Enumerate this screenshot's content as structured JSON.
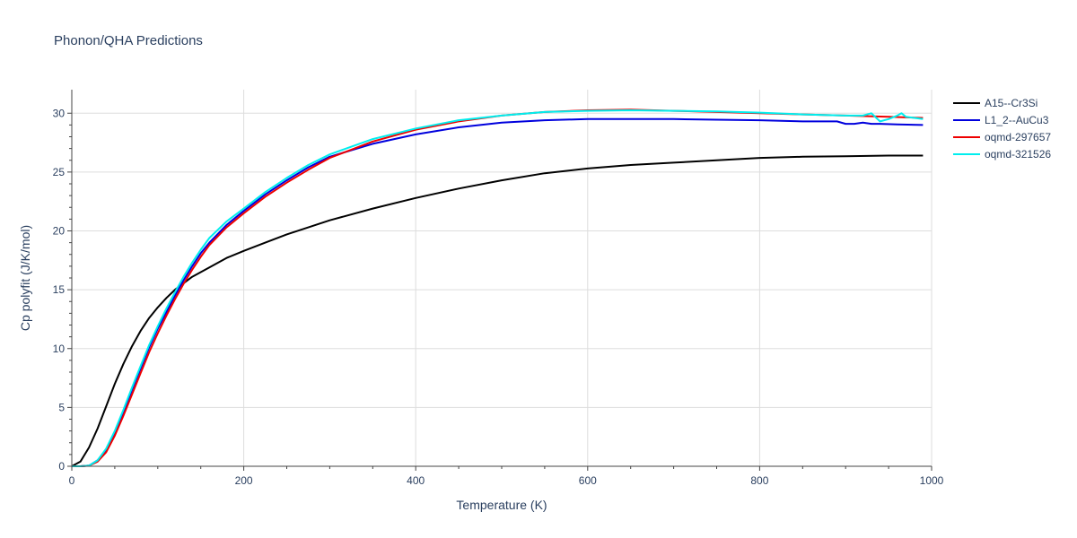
{
  "chart_data": {
    "type": "line",
    "title": "Phonon/QHA Predictions",
    "xlabel": "Temperature (K)",
    "ylabel": "Cp polyfit (J/K/mol)",
    "xlim": [
      0,
      1000
    ],
    "ylim": [
      0,
      32
    ],
    "xticks": [
      0,
      200,
      400,
      600,
      800,
      1000
    ],
    "yticks": [
      0,
      5,
      10,
      15,
      20,
      25,
      30
    ],
    "grid": true,
    "legend_position": "right",
    "series": [
      {
        "name": "A15--Cr3Si",
        "color": "#000000",
        "x": [
          0,
          10,
          20,
          30,
          40,
          50,
          60,
          70,
          80,
          90,
          100,
          110,
          120,
          140,
          160,
          180,
          200,
          225,
          250,
          275,
          300,
          350,
          400,
          450,
          500,
          550,
          600,
          650,
          700,
          750,
          800,
          850,
          900,
          950,
          990
        ],
        "y": [
          0,
          0.4,
          1.6,
          3.2,
          5.1,
          7.0,
          8.7,
          10.2,
          11.5,
          12.6,
          13.5,
          14.3,
          15.0,
          16.1,
          16.9,
          17.7,
          18.3,
          19.0,
          19.7,
          20.3,
          20.9,
          21.9,
          22.8,
          23.6,
          24.3,
          24.9,
          25.3,
          25.6,
          25.8,
          26.0,
          26.2,
          26.3,
          26.35,
          26.4,
          26.4
        ]
      },
      {
        "name": "L1_2--AuCu3",
        "color": "#0000dd",
        "x": [
          0,
          10,
          20,
          30,
          40,
          50,
          60,
          70,
          80,
          90,
          100,
          110,
          120,
          130,
          140,
          150,
          160,
          180,
          200,
          225,
          250,
          275,
          300,
          350,
          400,
          450,
          500,
          550,
          600,
          650,
          700,
          750,
          800,
          850,
          880,
          890,
          900,
          910,
          920,
          930,
          940,
          960,
          990
        ],
        "y": [
          0,
          0,
          0.05,
          0.5,
          1.4,
          2.9,
          4.6,
          6.5,
          8.3,
          10.1,
          11.7,
          13.1,
          14.5,
          15.8,
          17.0,
          18.1,
          19.0,
          20.5,
          21.7,
          23.1,
          24.3,
          25.4,
          26.3,
          27.4,
          28.2,
          28.8,
          29.2,
          29.4,
          29.5,
          29.5,
          29.5,
          29.45,
          29.4,
          29.3,
          29.3,
          29.3,
          29.1,
          29.1,
          29.2,
          29.1,
          29.1,
          29.05,
          29.0
        ]
      },
      {
        "name": "oqmd-297657",
        "color": "#ee0000",
        "x": [
          0,
          10,
          20,
          30,
          40,
          50,
          60,
          70,
          80,
          90,
          100,
          110,
          120,
          130,
          140,
          150,
          160,
          180,
          200,
          225,
          250,
          275,
          300,
          350,
          400,
          450,
          500,
          550,
          600,
          650,
          700,
          750,
          800,
          850,
          900,
          950,
          990
        ],
        "y": [
          0,
          0,
          0.05,
          0.4,
          1.2,
          2.6,
          4.3,
          6.1,
          7.9,
          9.7,
          11.3,
          12.8,
          14.2,
          15.5,
          16.7,
          17.8,
          18.8,
          20.3,
          21.5,
          22.9,
          24.1,
          25.2,
          26.2,
          27.6,
          28.6,
          29.3,
          29.8,
          30.1,
          30.25,
          30.3,
          30.2,
          30.1,
          30.0,
          29.9,
          29.8,
          29.7,
          29.6
        ]
      },
      {
        "name": "oqmd-321526",
        "color": "#00eeee",
        "x": [
          0,
          10,
          20,
          30,
          40,
          50,
          60,
          70,
          80,
          90,
          100,
          110,
          120,
          130,
          140,
          150,
          160,
          180,
          200,
          225,
          250,
          275,
          300,
          350,
          400,
          450,
          500,
          550,
          600,
          650,
          700,
          750,
          800,
          850,
          900,
          920,
          930,
          940,
          950,
          960,
          965,
          970,
          980,
          990
        ],
        "y": [
          0,
          0,
          0.05,
          0.5,
          1.5,
          3.0,
          4.8,
          6.7,
          8.5,
          10.3,
          11.9,
          13.4,
          14.8,
          16.1,
          17.3,
          18.4,
          19.4,
          20.8,
          21.9,
          23.3,
          24.5,
          25.6,
          26.5,
          27.8,
          28.7,
          29.4,
          29.8,
          30.1,
          30.2,
          30.25,
          30.2,
          30.15,
          30.05,
          29.9,
          29.8,
          29.8,
          30.0,
          29.3,
          29.5,
          29.8,
          30.0,
          29.7,
          29.6,
          29.5
        ]
      }
    ]
  }
}
